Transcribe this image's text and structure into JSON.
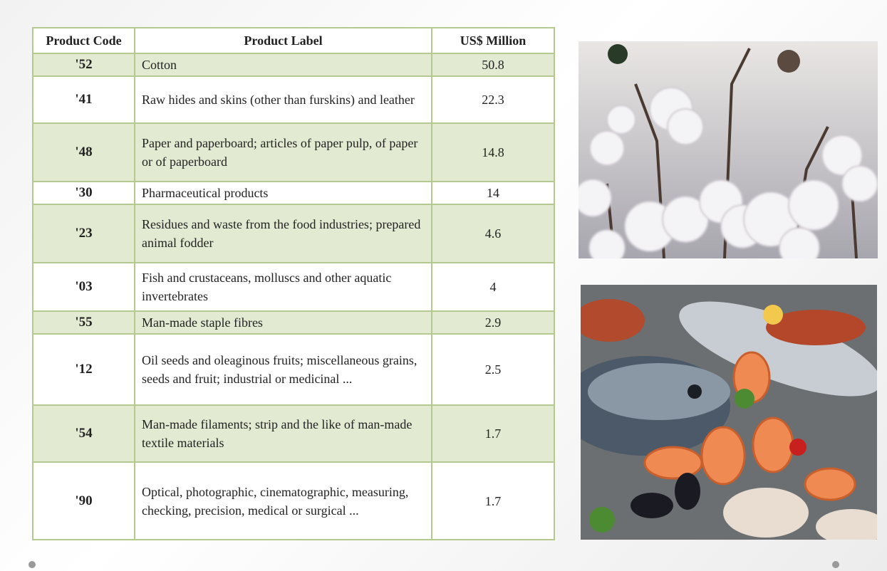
{
  "table": {
    "header": [
      "Product Code",
      "Product Label",
      "US$ Million"
    ],
    "rows": [
      [
        "'52",
        "Cotton",
        "50.8"
      ],
      [
        "'41",
        "Raw hides and skins (other than furskins) and leather",
        "22.3"
      ],
      [
        "'48",
        "Paper and paperboard; articles of paper pulp, of paper or of paperboard",
        "14.8"
      ],
      [
        "'30",
        "Pharmaceutical products",
        "14"
      ],
      [
        "'23",
        "Residues and waste from the food industries; prepared animal fodder",
        "4.6"
      ],
      [
        "'03",
        "Fish and crustaceans, molluscs and other aquatic invertebrates",
        "4"
      ],
      [
        "'55",
        "Man-made staple fibres",
        "2.9"
      ],
      [
        "'12",
        "Oil seeds and oleaginous fruits; miscellaneous grains, seeds and fruit; industrial or medicinal ...",
        "2.5"
      ],
      [
        "'54",
        "Man-made filaments; strip and the like of man-made textile materials",
        "1.7"
      ],
      [
        "'90",
        "Optical, photographic, cinematographic, measuring, checking, precision, medical or surgical ...",
        "1.7"
      ]
    ]
  }
}
